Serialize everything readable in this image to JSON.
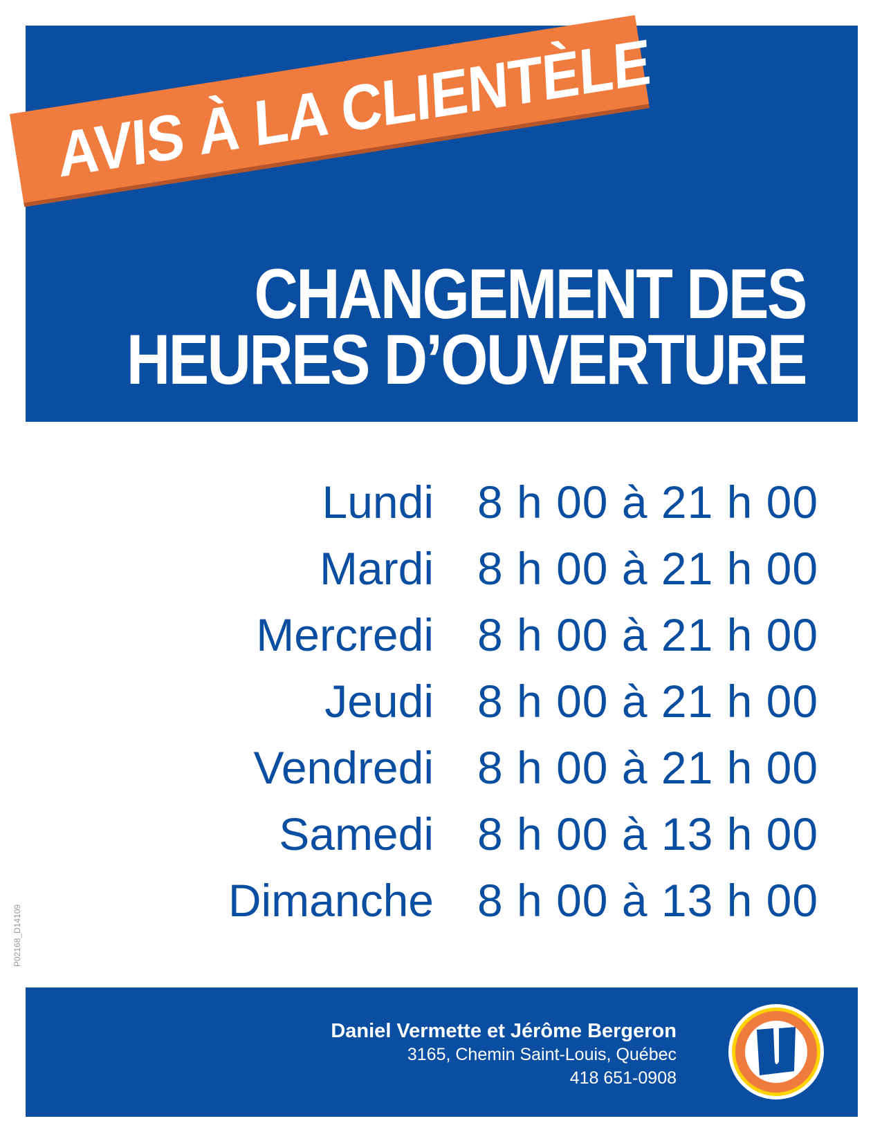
{
  "banner": {
    "text": "AVIS À LA CLIENTÈLE"
  },
  "headline": {
    "line1": "CHANGEMENT DES",
    "line2": "HEURES D’OUVERTURE"
  },
  "schedule": [
    {
      "day": "Lundi",
      "hours": "8 h 00 à 21 h 00"
    },
    {
      "day": "Mardi",
      "hours": "8 h 00 à 21 h 00"
    },
    {
      "day": "Mercredi",
      "hours": "8 h 00 à 21 h 00"
    },
    {
      "day": "Jeudi",
      "hours": "8 h 00 à 21 h 00"
    },
    {
      "day": "Vendredi",
      "hours": "8 h 00 à 21 h 00"
    },
    {
      "day": "Samedi",
      "hours": "8 h 00 à 13 h 00"
    },
    {
      "day": "Dimanche",
      "hours": "8 h 00 à 13 h 00"
    }
  ],
  "doc_code": "P02168_D14109",
  "footer": {
    "owners": "Daniel Vermette et Jérôme Bergeron",
    "address": "3165, Chemin Saint-Louis, Québec",
    "phone": "418 651-0908",
    "logo_letter": "U"
  },
  "colors": {
    "brand_blue": "#0a4ea2",
    "orange": "#f07b3f",
    "yellow": "#ffd200"
  }
}
